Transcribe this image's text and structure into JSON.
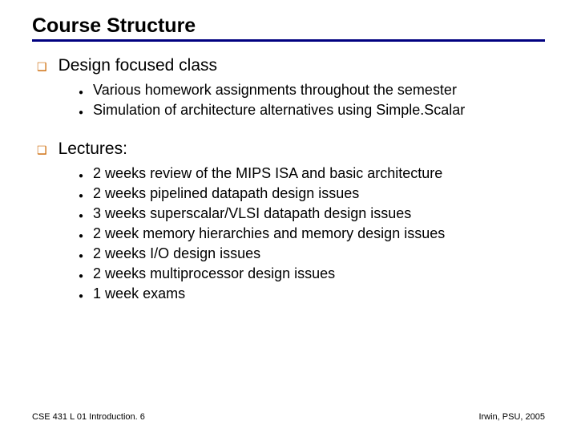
{
  "title": {
    "text": "Course Structure",
    "fontsize": 25,
    "rule_color": "#000080",
    "rule_width": 3
  },
  "style": {
    "lvl1_fontsize": 21,
    "lvl1_bullet_color": "#cc6600",
    "lvl1_bullet_glyph": "❑",
    "lvl1_bullet_size": 14,
    "lvl2_fontsize": 18,
    "lvl2_bullet_glyph": "●",
    "lvl2_bullet_size": 10,
    "body_line_spacing": 4,
    "section_gap": 26
  },
  "sections": [
    {
      "heading": "Design focused class",
      "items": [
        "Various homework assignments throughout the semester",
        "Simulation of architecture alternatives using Simple.Scalar"
      ]
    },
    {
      "heading": "Lectures:",
      "items": [
        "2 weeks review of the MIPS ISA and basic architecture",
        "2 weeks pipelined datapath design issues",
        "3 weeks superscalar/VLSI datapath design issues",
        "2 week memory hierarchies and memory design issues",
        "2 weeks I/O design issues",
        "2 weeks multiprocessor design issues",
        "1 week exams"
      ]
    }
  ],
  "footer": {
    "left": "CSE 431  L 01 Introduction. 6",
    "right": "Irwin, PSU, 2005",
    "fontsize": 11
  }
}
